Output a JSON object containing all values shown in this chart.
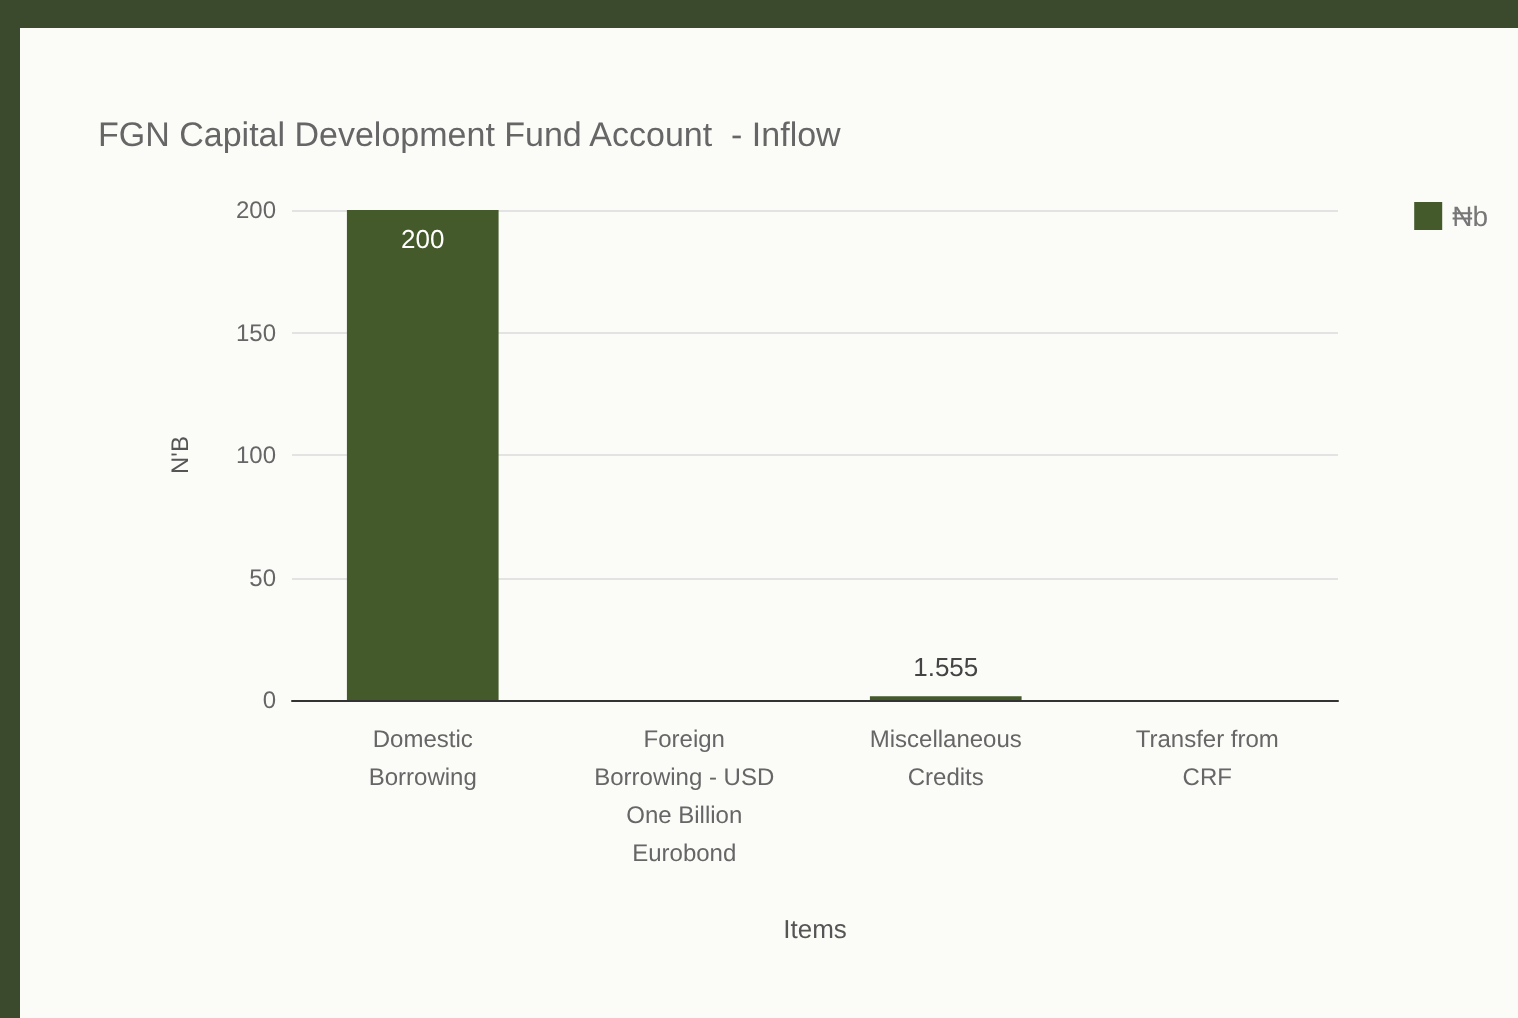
{
  "chart_data": {
    "type": "bar",
    "title": "FGN Capital Development Fund Account  - Inflow",
    "xlabel": "Items",
    "ylabel": "N'B",
    "categories": [
      "Domestic Borrowing",
      "Foreign Borrowing - USD One Billion Eurobond",
      "Miscellaneous Credits",
      "Transfer from CRF"
    ],
    "series": [
      {
        "name": "₦b",
        "color": "#445a2b",
        "values": [
          200,
          0,
          1.555,
          0
        ],
        "value_labels": [
          "200",
          null,
          "1.555",
          null
        ]
      }
    ],
    "ylim": [
      0,
      200
    ],
    "yticks": [
      0,
      50,
      100,
      150,
      200
    ],
    "grid": "y",
    "legend": "top right"
  }
}
